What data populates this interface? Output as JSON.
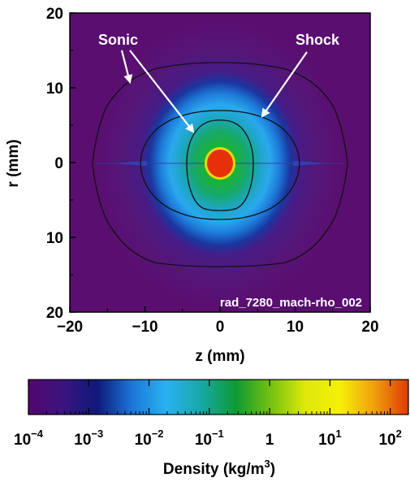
{
  "chart_data": [
    {
      "type": "heatmap",
      "title": "",
      "xlabel": "z (mm)",
      "ylabel": "r (mm)",
      "xlim": [
        -20,
        20
      ],
      "ylim": [
        -20,
        20
      ],
      "x_ticks": [
        {
          "value": -20,
          "label": "−20"
        },
        {
          "value": -10,
          "label": "−10"
        },
        {
          "value": 0,
          "label": "0"
        },
        {
          "value": 10,
          "label": "10"
        },
        {
          "value": 20,
          "label": "20"
        }
      ],
      "y_ticks": [
        {
          "value": 20,
          "label": "20"
        },
        {
          "value": 10,
          "label": "10"
        },
        {
          "value": 0,
          "label": "0"
        },
        {
          "value": -10,
          "label": "10"
        },
        {
          "value": -20,
          "label": "20"
        }
      ],
      "grid": false,
      "watermark": "rad_7280_mach-rho_002",
      "annotations": [
        {
          "text": "Sonic",
          "points_to": [
            [
              -12.5,
              11.5
            ],
            [
              -3.5,
              4
            ]
          ]
        },
        {
          "text": "Shock",
          "points_to": [
            [
              5.5,
              6.5
            ]
          ]
        }
      ],
      "contours": [
        {
          "name": "outer",
          "z_extent": [
            -17,
            17
          ],
          "r_extent": [
            -14,
            14
          ]
        },
        {
          "name": "middle",
          "z_extent": [
            -10.5,
            10.5
          ],
          "r_extent": [
            -7.5,
            7
          ]
        },
        {
          "name": "inner",
          "z_extent": [
            -4.5,
            4.5
          ],
          "r_extent": [
            -6.3,
            5.8
          ]
        }
      ],
      "core_peak_density": 100
    },
    {
      "type": "colorbar",
      "label": "Density (kg/m",
      "label_sup": "3",
      "label_end": ")",
      "scale": "log",
      "range": [
        0.0001,
        200
      ],
      "ticks": [
        {
          "value": 0.0001,
          "base": "10",
          "exp": "−4"
        },
        {
          "value": 0.001,
          "base": "10",
          "exp": "−3"
        },
        {
          "value": 0.01,
          "base": "10",
          "exp": "−2"
        },
        {
          "value": 0.1,
          "base": "10",
          "exp": "−1"
        },
        {
          "value": 1,
          "base": "1",
          "exp": ""
        },
        {
          "value": 10,
          "base": "10",
          "exp": "1"
        },
        {
          "value": 100,
          "base": "10",
          "exp": "2"
        }
      ],
      "colors": [
        "#55056e",
        "#3a147e",
        "#0e1a7a",
        "#1c76d8",
        "#29b2ef",
        "#18a8a6",
        "#0c9a32",
        "#74c011",
        "#dce80a",
        "#f6f008",
        "#f0a00c",
        "#e03a07"
      ]
    }
  ]
}
